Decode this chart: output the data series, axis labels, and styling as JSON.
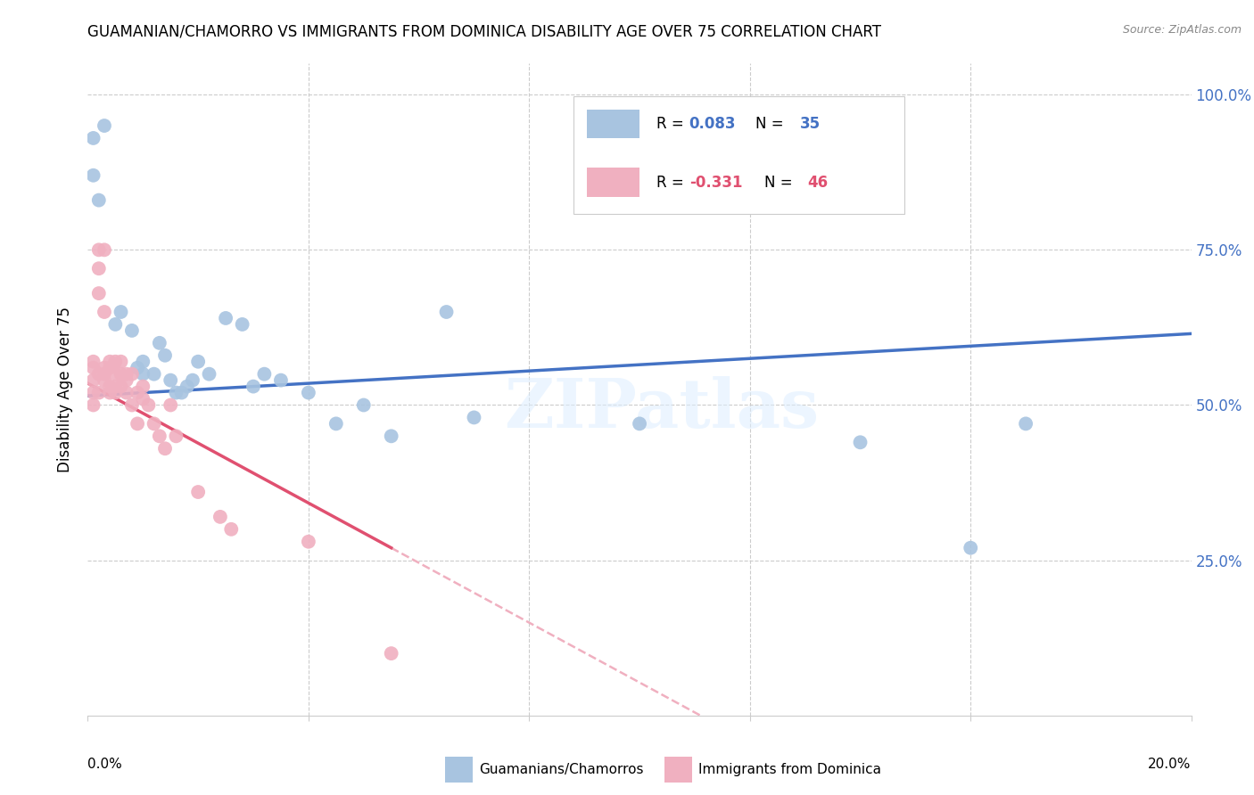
{
  "title": "GUAMANIAN/CHAMORRO VS IMMIGRANTS FROM DOMINICA DISABILITY AGE OVER 75 CORRELATION CHART",
  "source": "Source: ZipAtlas.com",
  "ylabel": "Disability Age Over 75",
  "yticks": [
    0.0,
    0.25,
    0.5,
    0.75,
    1.0
  ],
  "ytick_labels": [
    "",
    "25.0%",
    "50.0%",
    "75.0%",
    "100.0%"
  ],
  "xmin": 0.0,
  "xmax": 0.2,
  "ymin": 0.0,
  "ymax": 1.05,
  "color_blue": "#a8c4e0",
  "color_pink": "#f0b0c0",
  "color_blue_line": "#4472c4",
  "color_pink_line": "#e05070",
  "color_pink_dashed": "#f0b0c0",
  "legend_label1": "Guamanians/Chamorros",
  "legend_label2": "Immigrants from Dominica",
  "watermark": "ZIPatlas",
  "blue_x": [
    0.001,
    0.001,
    0.002,
    0.003,
    0.005,
    0.006,
    0.008,
    0.009,
    0.01,
    0.01,
    0.012,
    0.013,
    0.014,
    0.015,
    0.016,
    0.017,
    0.018,
    0.019,
    0.02,
    0.022,
    0.025,
    0.028,
    0.03,
    0.032,
    0.035,
    0.04,
    0.045,
    0.05,
    0.055,
    0.065,
    0.07,
    0.1,
    0.14,
    0.16,
    0.17
  ],
  "blue_y": [
    0.93,
    0.87,
    0.83,
    0.95,
    0.63,
    0.65,
    0.62,
    0.56,
    0.57,
    0.55,
    0.55,
    0.6,
    0.58,
    0.54,
    0.52,
    0.52,
    0.53,
    0.54,
    0.57,
    0.55,
    0.64,
    0.63,
    0.53,
    0.55,
    0.54,
    0.52,
    0.47,
    0.5,
    0.45,
    0.65,
    0.48,
    0.47,
    0.44,
    0.27,
    0.47
  ],
  "pink_x": [
    0.001,
    0.001,
    0.001,
    0.001,
    0.001,
    0.002,
    0.002,
    0.002,
    0.002,
    0.002,
    0.003,
    0.003,
    0.003,
    0.003,
    0.003,
    0.004,
    0.004,
    0.004,
    0.004,
    0.005,
    0.005,
    0.005,
    0.005,
    0.006,
    0.006,
    0.006,
    0.007,
    0.007,
    0.007,
    0.008,
    0.008,
    0.009,
    0.009,
    0.01,
    0.01,
    0.011,
    0.012,
    0.013,
    0.014,
    0.015,
    0.016,
    0.02,
    0.024,
    0.026,
    0.04,
    0.055
  ],
  "pink_y": [
    0.57,
    0.56,
    0.54,
    0.52,
    0.5,
    0.75,
    0.72,
    0.68,
    0.55,
    0.52,
    0.75,
    0.65,
    0.56,
    0.55,
    0.54,
    0.57,
    0.56,
    0.53,
    0.52,
    0.57,
    0.55,
    0.53,
    0.52,
    0.57,
    0.55,
    0.53,
    0.55,
    0.54,
    0.52,
    0.55,
    0.5,
    0.52,
    0.47,
    0.53,
    0.51,
    0.5,
    0.47,
    0.45,
    0.43,
    0.5,
    0.45,
    0.36,
    0.32,
    0.3,
    0.28,
    0.1
  ]
}
